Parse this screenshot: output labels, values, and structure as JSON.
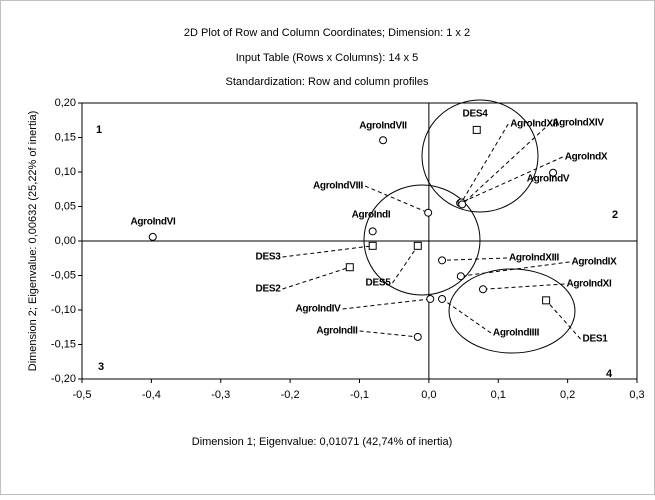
{
  "chart_data": {
    "type": "scatter",
    "title": "2D Plot of Row and Column Coordinates; Dimension:  1 x  2",
    "subtitle": [
      "Input Table (Rows x Columns): 14 x 5",
      "Standardization: Row and column profiles"
    ],
    "xlabel": "Dimension 1; Eigenvalue: 0,01071 (42,74% of inertia)",
    "ylabel": "Dimension 2; Eigenvalue: 0,00632 (25,22% of inertia)",
    "annotations": [
      "1",
      "2",
      "3",
      "4"
    ],
    "xlim": [
      -0.5,
      0.3
    ],
    "ylim": [
      -0.2,
      0.2
    ],
    "xticks": [
      {
        "value": -0.5,
        "label": "-0,5"
      },
      {
        "value": -0.4,
        "label": "-0,4"
      },
      {
        "value": -0.3,
        "label": "-0,3"
      },
      {
        "value": -0.2,
        "label": "-0,2"
      },
      {
        "value": -0.1,
        "label": "-0,1"
      },
      {
        "value": 0,
        "label": "0,0"
      },
      {
        "value": 0.1,
        "label": "0,1"
      },
      {
        "value": 0.2,
        "label": "0,2"
      },
      {
        "value": 0.3,
        "label": "0,3"
      }
    ],
    "yticks": [
      {
        "value": 0.2,
        "label": "0,20"
      },
      {
        "value": 0.15,
        "label": "0,15"
      },
      {
        "value": 0.1,
        "label": "0,10"
      },
      {
        "value": 0.05,
        "label": "0,05"
      },
      {
        "value": 0,
        "label": "0,00"
      },
      {
        "value": -0.05,
        "label": "-0,05"
      },
      {
        "value": -0.1,
        "label": "-0,10"
      },
      {
        "value": -0.15,
        "label": "-0,15"
      },
      {
        "value": -0.2,
        "label": "-0,20"
      }
    ],
    "series": [
      {
        "marker": "circle",
        "color": "#000000",
        "labels": [
          "AgroIndI",
          "AgroIndII",
          "AgroIndIIII",
          "AgroIndIV",
          "AgroIndV",
          "AgroIndVI",
          "AgroIndVII",
          "AgroIndVIII",
          "AgroIndIX",
          "AgroIndX",
          "AgroIndXI",
          "AgroIndXII",
          "AgroIndXIII",
          "AgroIndXIV"
        ],
        "x": [
          -0.081,
          -0.016,
          0.019,
          0.002,
          0.179,
          -0.398,
          -0.066,
          -0.001,
          0.046,
          0.045,
          0.078,
          0.047,
          0.019,
          0.048
        ],
        "y": [
          0.014,
          -0.139,
          -0.084,
          -0.084,
          0.099,
          0.006,
          0.146,
          0.041,
          -0.051,
          0.055,
          -0.07,
          0.056,
          -0.028,
          0.053
        ]
      },
      {
        "marker": "square",
        "color": "#000000",
        "labels": [
          "DES1",
          "DES2",
          "DES3",
          "DES4",
          "DES5"
        ],
        "x": [
          0.169,
          -0.114,
          -0.081,
          0.069,
          -0.016
        ],
        "y": [
          -0.086,
          -0.038,
          -0.007,
          0.161,
          -0.007
        ]
      }
    ]
  }
}
